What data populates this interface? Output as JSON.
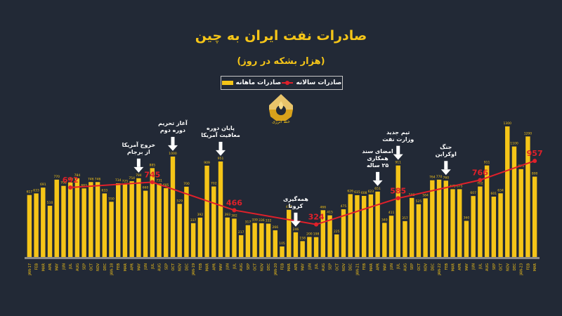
{
  "title": "صادرات نفت ایران به چین",
  "subtitle": "(هزار بشکه در روز)",
  "legend": {
    "monthly": "صادرات ماهانه",
    "annual": "صادرات سالانه"
  },
  "logo_text": "خط انرژی",
  "colors": {
    "background": "#222936",
    "bar": "#f5c518",
    "line": "#e0202a",
    "label": "#f5c518",
    "annual_label": "#e0202a",
    "axis": "#8a8a8a"
  },
  "annotations": [
    {
      "text": "خروج آمریکا\nاز برجام",
      "month_index": 16
    },
    {
      "text": "آغاز تحریم\nدوره دوم",
      "month_index": 21
    },
    {
      "text": "پایان دوره\nمعافیت آمریکا",
      "month_index": 28
    },
    {
      "text": "همه‌گیری\nکرونا",
      "month_index": 39
    },
    {
      "text": "امضای سند\nهمکاری\n۲۵ ساله",
      "month_index": 51
    },
    {
      "text": "تیم جدید\nوزارت نفت",
      "month_index": 54
    },
    {
      "text": "جنگ\nاوکراین",
      "month_index": 61
    }
  ],
  "chart_data": {
    "type": "bar",
    "title": "صادرات نفت ایران به چین",
    "subtitle": "(هزار بشکه در روز)",
    "xlabel": "",
    "ylabel": "",
    "ylim": [
      0,
      1400
    ],
    "grid": false,
    "legend_position": "top",
    "categories": [
      "JAN-17",
      "FEB",
      "MAR",
      "APR",
      "MAY",
      "JUN",
      "JUL",
      "AUG",
      "SEP",
      "OCT",
      "NOV",
      "DEC",
      "JAN-18",
      "FEB",
      "MAR",
      "APR",
      "MAY",
      "JUN",
      "JUL",
      "AUG",
      "SEP",
      "OCT",
      "NOV",
      "DEC",
      "JAN-19",
      "FEB",
      "MAR",
      "APR",
      "MAY",
      "JUN",
      "JUL",
      "AUG",
      "SEP",
      "OCT",
      "NOV",
      "DEC",
      "JAN-20",
      "FEB",
      "MAR",
      "APR",
      "MAY",
      "JUN",
      "JUL",
      "AUG",
      "SEP",
      "OCT",
      "NOV",
      "DEC",
      "JAN-21",
      "FEB",
      "MAR",
      "APR",
      "MAY",
      "JUN",
      "JUL",
      "AUG",
      "SEP",
      "OCT",
      "NOV",
      "DEC",
      "JAN-22",
      "FEB",
      "MAR",
      "APR",
      "MAY",
      "JUN",
      "JUL",
      "AUG",
      "SEP",
      "OCT",
      "NOV",
      "DEC",
      "JAN-23",
      "FEB",
      "MAR"
    ],
    "series": [
      {
        "name": "صادرات ماهانه",
        "type": "bar",
        "values": [
          617,
          633,
          691,
          510,
          770,
          708,
          742,
          784,
          683,
          746,
          746,
          633,
          550,
          734,
          725,
          754,
          784,
          660,
          885,
          731,
          685,
          1000,
          529,
          700,
          337,
          392,
          909,
          702,
          951,
          393,
          382,
          217,
          317,
          339,
          336,
          332,
          266,
          105,
          470,
          246,
          158,
          200,
          198,
          466,
          415,
          225,
          475,
          626,
          615,
          608,
          623,
          651,
          340,
          411,
          911,
          357,
          588,
          525,
          584,
          764,
          770,
          760,
          675,
          675,
          360,
          607,
          702,
          911,
          601,
          634,
          1300,
          1100,
          875,
          1200,
          800
        ]
      },
      {
        "name": "صادرات سالانه",
        "type": "line",
        "points": [
          {
            "month_index": 6,
            "value": 692
          },
          {
            "month_index": 18,
            "value": 745
          },
          {
            "month_index": 30,
            "value": 466
          },
          {
            "month_index": 42,
            "value": 324
          },
          {
            "month_index": 54,
            "value": 585
          },
          {
            "month_index": 66,
            "value": 766
          },
          {
            "month_index": 74,
            "value": 957
          }
        ]
      }
    ]
  }
}
